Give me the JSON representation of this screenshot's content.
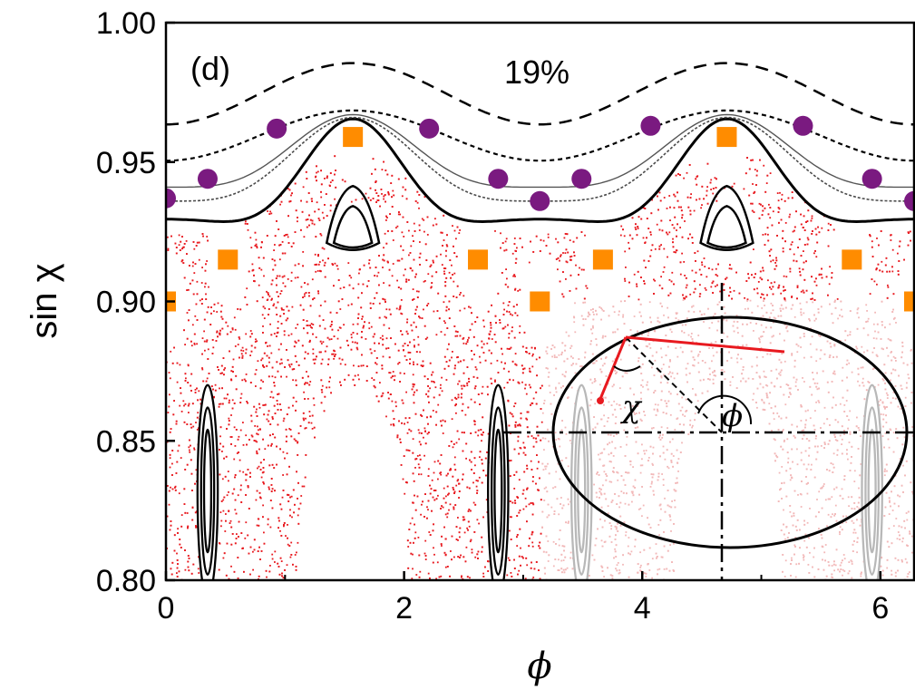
{
  "chart_data": {
    "type": "scatter",
    "title": "",
    "panel_label": "(d)",
    "annotation": "19%",
    "xlabel": "ϕ",
    "ylabel": "sin χ",
    "xlim": [
      0,
      6.283
    ],
    "ylim": [
      0.8,
      1.0
    ],
    "xticks": [
      "0",
      "2",
      "4",
      "6"
    ],
    "yticks": [
      "0.80",
      "0.85",
      "0.90",
      "0.95",
      "1.00"
    ],
    "grid": false,
    "colors": {
      "chaos": "#e8191f",
      "chaos_faded": "#f2b8b8",
      "square_marker": "#ff8c00",
      "circle_marker": "#7a1a80",
      "curve": "#000000",
      "faded_curve": "#b8b8b8"
    },
    "series": [
      {
        "name": "",
        "marker": "square",
        "x": [
          0.0,
          0.52,
          1.57,
          2.62,
          3.14,
          3.67,
          4.71,
          5.76,
          6.283
        ],
        "y": [
          0.9,
          0.915,
          0.959,
          0.915,
          0.9,
          0.915,
          0.959,
          0.915,
          0.9
        ]
      },
      {
        "name": "",
        "marker": "circle",
        "x": [
          0.0,
          0.35,
          0.93,
          2.21,
          2.79,
          3.14,
          3.49,
          4.07,
          5.35,
          5.93,
          6.283
        ],
        "y": [
          0.937,
          0.944,
          0.962,
          0.962,
          0.944,
          0.936,
          0.944,
          0.963,
          0.963,
          0.944,
          0.936
        ]
      }
    ],
    "inset": {
      "chi_label": "χ",
      "phi_label": "ϕ"
    }
  }
}
